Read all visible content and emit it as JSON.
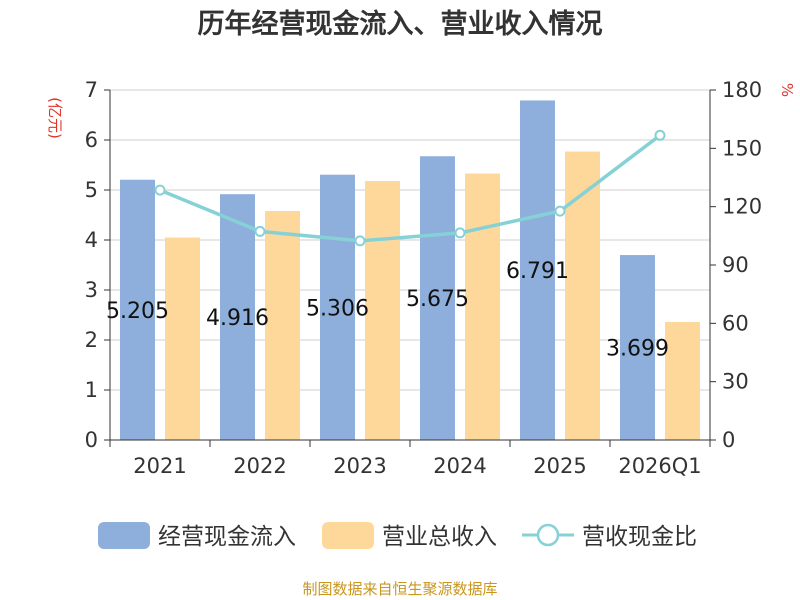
{
  "title": "历年经营现金流入、营业收入情况",
  "source": "制图数据来自恒生聚源数据库",
  "colors": {
    "cash_inflow": "#8eaedc",
    "revenue": "#fdd89a",
    "ratio_line": "#86d1d6",
    "unit_text": "#e3322a",
    "source_text": "#c8961e"
  },
  "chart_data": {
    "type": "bar",
    "title": "历年经营现金流入、营业收入情况",
    "categories": [
      "2021",
      "2022",
      "2023",
      "2024",
      "2025",
      "2026Q1"
    ],
    "series": [
      {
        "name": "经营现金流入",
        "type": "bar",
        "axis": "left",
        "values": [
          5.205,
          4.916,
          5.306,
          5.675,
          6.791,
          3.699
        ],
        "labels": [
          "5.205",
          "4.916",
          "5.306",
          "5.675",
          "6.791",
          "3.699"
        ]
      },
      {
        "name": "营业总收入",
        "type": "bar",
        "axis": "left",
        "values": [
          4.05,
          4.58,
          5.18,
          5.33,
          5.77,
          2.36
        ]
      },
      {
        "name": "营收现金比",
        "type": "line",
        "axis": "right",
        "values": [
          128.5,
          107.3,
          102.4,
          106.5,
          117.7,
          156.7
        ]
      }
    ],
    "y_left": {
      "unit": "(亿元)",
      "ylim": [
        0,
        7
      ],
      "ticks": [
        0,
        1,
        2,
        3,
        4,
        5,
        6,
        7
      ]
    },
    "y_right": {
      "unit": "%",
      "ylim": [
        0,
        180
      ],
      "ticks": [
        0,
        30,
        60,
        90,
        120,
        150,
        180
      ]
    },
    "grid": true,
    "legend_position": "bottom"
  }
}
